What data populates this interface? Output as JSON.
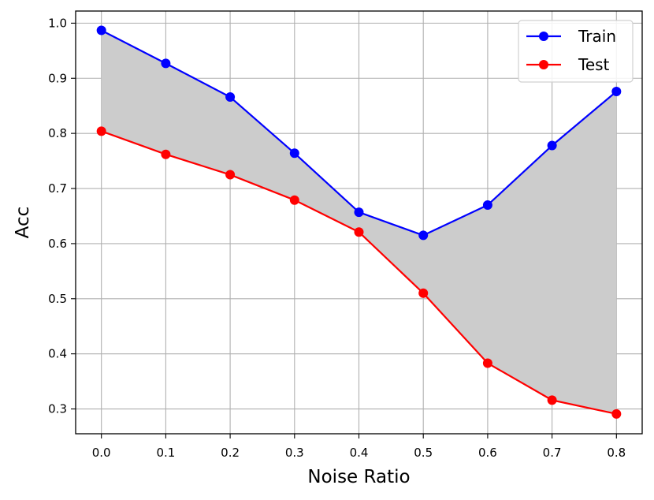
{
  "chart_data": {
    "type": "line",
    "x": [
      0.0,
      0.1,
      0.2,
      0.3,
      0.4,
      0.5,
      0.6,
      0.7,
      0.8
    ],
    "xlabel": "Noise Ratio",
    "ylabel": "Acc",
    "xlim": [
      -0.04,
      0.84
    ],
    "ylim": [
      0.255,
      1.022
    ],
    "xticks": [
      "0.0",
      "0.1",
      "0.2",
      "0.3",
      "0.4",
      "0.5",
      "0.6",
      "0.7",
      "0.8"
    ],
    "yticks": [
      "0.3",
      "0.4",
      "0.5",
      "0.6",
      "0.7",
      "0.8",
      "0.9",
      "1.0"
    ],
    "grid": true,
    "legend_position": "top-right",
    "fill_between": {
      "series": [
        "Train",
        "Test"
      ],
      "color": "#cccccc"
    },
    "series": [
      {
        "name": "Train",
        "color": "#0000ff",
        "values": [
          0.987,
          0.927,
          0.866,
          0.764,
          0.657,
          0.615,
          0.67,
          0.778,
          0.876
        ]
      },
      {
        "name": "Test",
        "color": "#ff0000",
        "values": [
          0.804,
          0.762,
          0.725,
          0.679,
          0.621,
          0.51,
          0.383,
          0.316,
          0.291
        ]
      }
    ]
  }
}
